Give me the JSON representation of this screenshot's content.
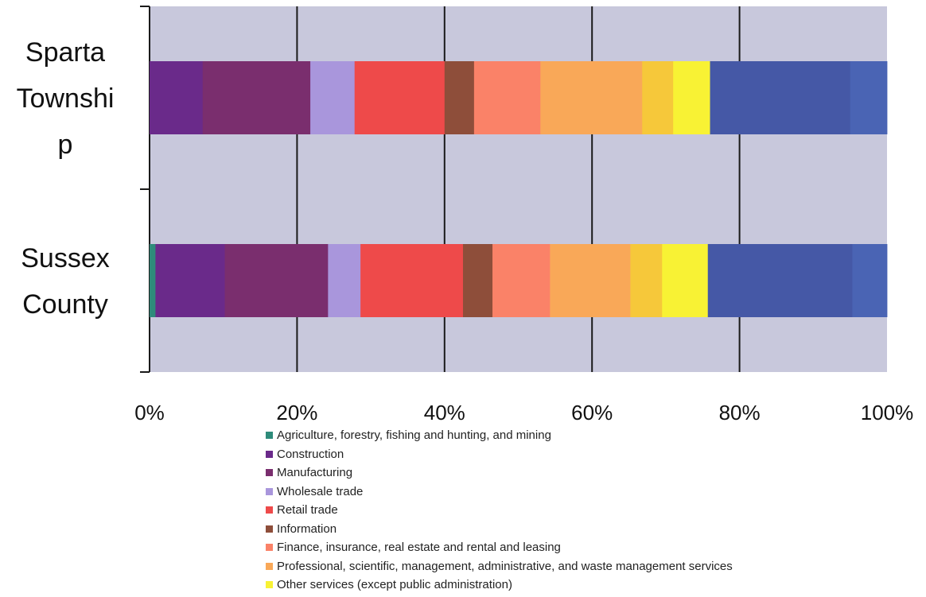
{
  "chart_data": {
    "type": "bar",
    "orientation": "horizontal",
    "stacked": "percent",
    "categories": [
      "Sparta Township",
      "Sussex County"
    ],
    "category_labels": [
      [
        "Sparta",
        "Townshi",
        "p"
      ],
      [
        "Sussex",
        "County"
      ]
    ],
    "xlim": [
      0,
      100
    ],
    "x_ticks": [
      "0%",
      "20%",
      "40%",
      "60%",
      "80%",
      "100%"
    ],
    "grid": true,
    "plot_background": "#c8c8dc",
    "legend_position": "bottom",
    "series": [
      {
        "name": "Agriculture, forestry, fishing and hunting, and mining",
        "color": "#2e8b7a",
        "values": [
          0.0,
          0.8
        ]
      },
      {
        "name": "Construction",
        "color": "#6a2a8a",
        "values": [
          7.2,
          9.4
        ]
      },
      {
        "name": "Manufacturing",
        "color": "#7a2e6e",
        "values": [
          14.6,
          14.0
        ]
      },
      {
        "name": "Wholesale trade",
        "color": "#a996dc",
        "values": [
          6.0,
          4.4
        ]
      },
      {
        "name": "Retail trade",
        "color": "#ee4a4a",
        "values": [
          12.2,
          13.9
        ]
      },
      {
        "name": "Information",
        "color": "#8e4e3a",
        "values": [
          4.0,
          4.0
        ]
      },
      {
        "name": "Finance, insurance, real estate and rental and leasing",
        "color": "#fa8268",
        "values": [
          9.0,
          7.8
        ]
      },
      {
        "name": "Professional, scientific, management, administrative, and waste management services",
        "color": "#f9a858",
        "values": [
          13.8,
          10.9
        ]
      },
      {
        "name": "",
        "color": "#f6c83a",
        "values": [
          4.2,
          4.3
        ]
      },
      {
        "name": "Other services (except public administration)",
        "color": "#f8f234",
        "values": [
          5.0,
          6.2
        ]
      },
      {
        "name": "",
        "color": "#4558a6",
        "values": [
          19.0,
          19.6
        ]
      },
      {
        "name": "",
        "color": "#4a64b4",
        "values": [
          5.0,
          4.7
        ]
      }
    ]
  }
}
